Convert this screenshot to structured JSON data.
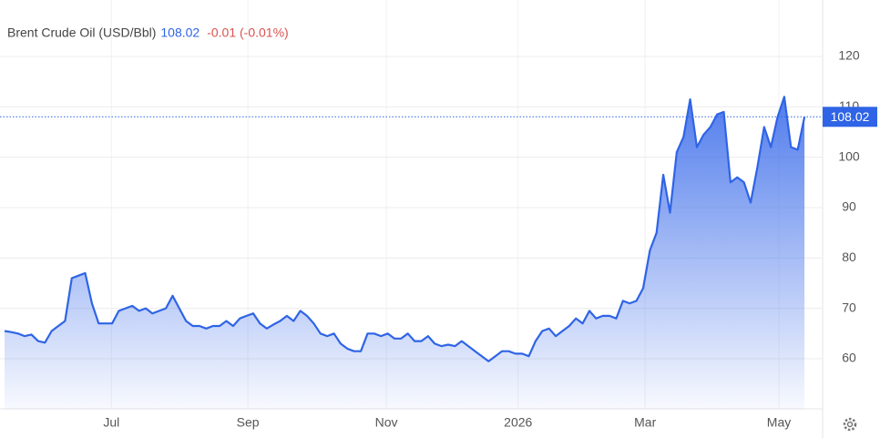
{
  "chart_data": {
    "type": "area",
    "title": "Brent Crude Oil (USD/Bbl)",
    "last_price": 108.02,
    "change_label": "-0.01 (-0.01%)",
    "color": "#2f64e6",
    "values": [
      65.5,
      65.3,
      65,
      64.5,
      64.8,
      63.5,
      63.2,
      65.5,
      66.5,
      67.5,
      76,
      76.5,
      77,
      71,
      67,
      67,
      67,
      69.5,
      70,
      70.5,
      69.5,
      70,
      69,
      69.5,
      70,
      72.5,
      70,
      67.5,
      66.5,
      66.5,
      66,
      66.5,
      66.5,
      67.5,
      66.5,
      68,
      68.5,
      69,
      67,
      66,
      66.8,
      67.5,
      68.5,
      67.5,
      69.5,
      68.5,
      67,
      65,
      64.5,
      65,
      63,
      62,
      61.5,
      61.5,
      65,
      65,
      64.5,
      65,
      64,
      64,
      65,
      63.5,
      63.5,
      64.5,
      63,
      62.5,
      62.8,
      62.5,
      63.5,
      62.5,
      61.5,
      60.5,
      59.5,
      60.5,
      61.5,
      61.5,
      61,
      61,
      60.5,
      63.5,
      65.5,
      66,
      64.5,
      65.5,
      66.5,
      68,
      67,
      69.5,
      68,
      68.5,
      68.5,
      68,
      71.5,
      71,
      71.5,
      74,
      81.5,
      85,
      96.5,
      89,
      101,
      104,
      111.5,
      102,
      104.5,
      106,
      108.5,
      109,
      95,
      96,
      95,
      91,
      98,
      106,
      102,
      108,
      112,
      102,
      101.5,
      108.02
    ],
    "xlim": [
      0,
      121.7
    ],
    "xticks": [
      {
        "value": 15.9,
        "label": "Jul"
      },
      {
        "value": 36.2,
        "label": "Sep"
      },
      {
        "value": 56.8,
        "label": "Nov"
      },
      {
        "value": 76.4,
        "label": "2026"
      },
      {
        "value": 95.3,
        "label": "Mar"
      },
      {
        "value": 115.2,
        "label": "May"
      }
    ],
    "ylim": [
      50,
      130
    ],
    "yticks": [
      60,
      70,
      80,
      90,
      100,
      110,
      120
    ],
    "grid": true
  }
}
